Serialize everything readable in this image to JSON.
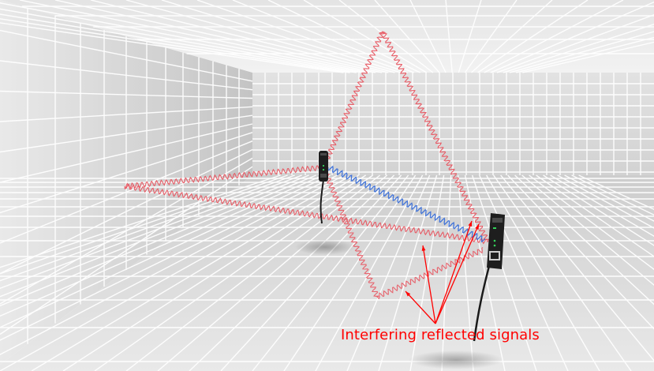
{
  "caption": "Interfering reflected signals",
  "colors": {
    "reflected_signal": "#e8545f",
    "direct_signal": "#3a6fd8",
    "annotation": "#ff0000",
    "grid_line": "#ffffff",
    "room_floor": "#d8d8d8",
    "room_wall": "#cfcfcf",
    "device_body": "#1e1e1e"
  },
  "icons": {
    "device_left": "sensor-device-icon",
    "device_right": "sensor-device-icon"
  }
}
